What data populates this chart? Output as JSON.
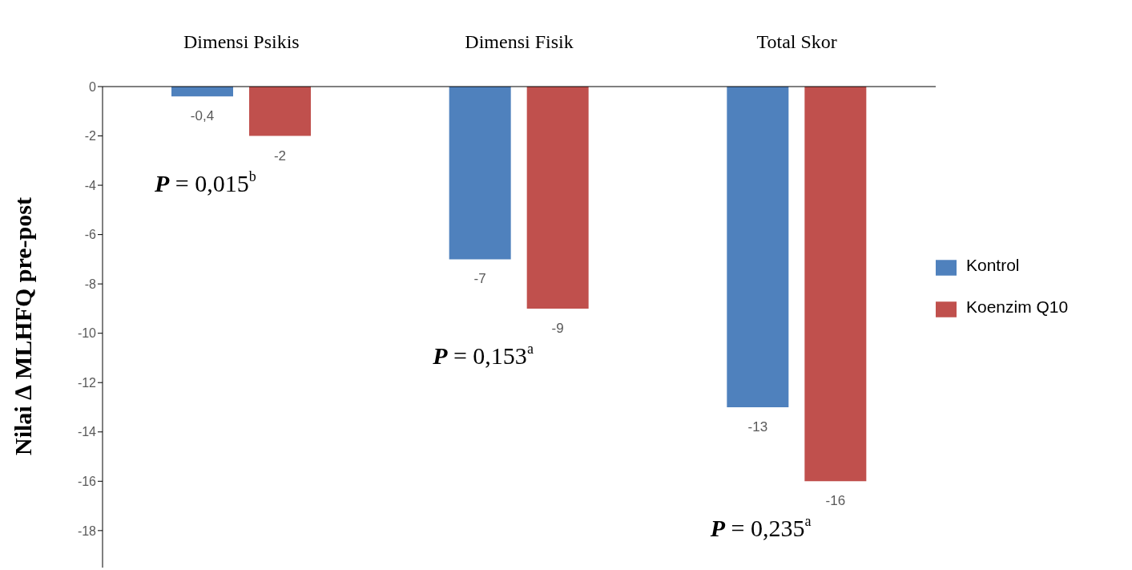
{
  "chart_data": {
    "type": "bar",
    "ylabel": "Nilai ∆ MLHFQ pre-post",
    "categories": [
      "Dimensi Psikis",
      "Dimensi Fisik",
      "Total Skor"
    ],
    "series": [
      {
        "name": "Kontrol",
        "color": "#4f81bd",
        "values": [
          -0.4,
          -7,
          -13
        ],
        "value_labels": [
          "-0,4",
          "-7",
          "-13"
        ]
      },
      {
        "name": "Koenzim Q10",
        "color": "#c0504d",
        "values": [
          -2,
          -9,
          -16
        ],
        "value_labels": [
          "-2",
          "-9",
          "-16"
        ]
      }
    ],
    "ylim": [
      -19.5,
      0
    ],
    "yticks": [
      0,
      -2,
      -4,
      -6,
      -8,
      -10,
      -12,
      -14,
      -16,
      -18
    ],
    "grid": false,
    "legend": "right",
    "annotations": [
      "P = 0,015$^{b}$",
      "P = 0,153$^{a}$",
      "P = 0,235$^{a}$"
    ]
  }
}
